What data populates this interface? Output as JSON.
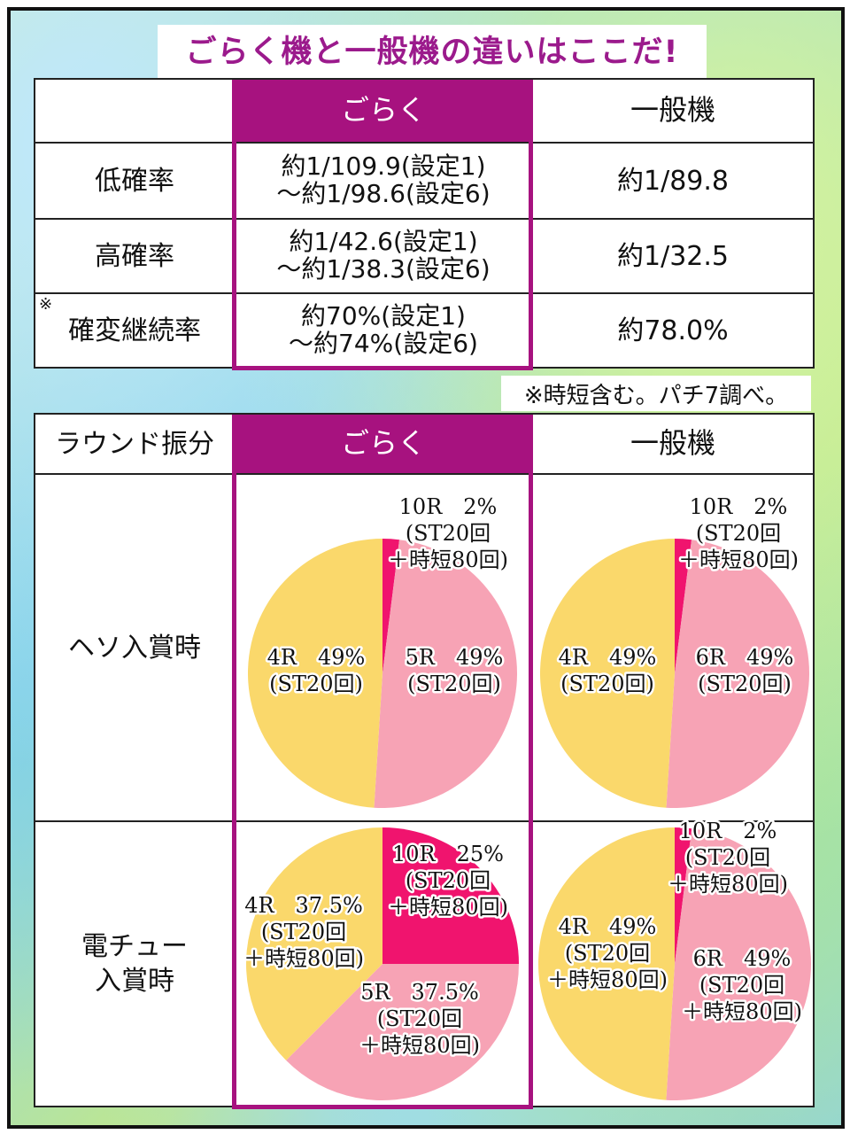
{
  "title": "ごらく機と一般機の違いはここだ!",
  "table1": {
    "header": {
      "goraku": "ごらく",
      "ippan": "一般機"
    },
    "rows": [
      {
        "label": "低確率",
        "goraku": [
          "約1/109.9(設定1)",
          "～約1/98.6(設定6)"
        ],
        "ippan": "約1/89.8"
      },
      {
        "label": "高確率",
        "goraku": [
          "約1/42.6(設定1)",
          "～約1/38.3(設定6)"
        ],
        "ippan": "約1/32.5"
      },
      {
        "label": "確変継続率",
        "mark": "※",
        "goraku": [
          "約70%(設定1)",
          "～約74%(設定6)"
        ],
        "ippan": "約78.0%"
      }
    ],
    "note": "※時短含む。パチ7調べ。"
  },
  "table2": {
    "header": {
      "label": "ラウンド振分",
      "goraku": "ごらく",
      "ippan": "一般機"
    },
    "rows": [
      {
        "label": [
          "ヘソ入賞時"
        ]
      },
      {
        "label": [
          "電チュー",
          "入賞時"
        ]
      }
    ]
  },
  "colors": {
    "purple": "#a7127f",
    "pie_magenta": "#f0146e",
    "pie_pink": "#f7a3b5",
    "pie_yellow": "#fad86b"
  },
  "chart_data": [
    {
      "type": "pie",
      "condition": "ヘソ入賞時",
      "machine": "ごらく",
      "slices": [
        {
          "label": [
            "10R　2%",
            "(ST20回",
            "＋時短80回)"
          ],
          "value": 2,
          "color": "#f0146e"
        },
        {
          "label": [
            "5R　49%",
            "(ST20回)"
          ],
          "value": 49,
          "color": "#f7a3b5"
        },
        {
          "label": [
            "4R　49%",
            "(ST20回)"
          ],
          "value": 49,
          "color": "#fad86b"
        }
      ]
    },
    {
      "type": "pie",
      "condition": "ヘソ入賞時",
      "machine": "一般機",
      "slices": [
        {
          "label": [
            "10R　2%",
            "(ST20回",
            "＋時短80回)"
          ],
          "value": 2,
          "color": "#f0146e"
        },
        {
          "label": [
            "6R　49%",
            "(ST20回)"
          ],
          "value": 49,
          "color": "#f7a3b5"
        },
        {
          "label": [
            "4R　49%",
            "(ST20回)"
          ],
          "value": 49,
          "color": "#fad86b"
        }
      ]
    },
    {
      "type": "pie",
      "condition": "電チュー入賞時",
      "machine": "ごらく",
      "slices": [
        {
          "label": [
            "10R　25%",
            "(ST20回",
            "＋時短80回)"
          ],
          "value": 25,
          "color": "#f0146e"
        },
        {
          "label": [
            "5R　37.5%",
            "(ST20回",
            "＋時短80回)"
          ],
          "value": 37.5,
          "color": "#f7a3b5"
        },
        {
          "label": [
            "4R　37.5%",
            "(ST20回",
            "＋時短80回)"
          ],
          "value": 37.5,
          "color": "#fad86b"
        }
      ]
    },
    {
      "type": "pie",
      "condition": "電チュー入賞時",
      "machine": "一般機",
      "slices": [
        {
          "label": [
            "10R　2%",
            "(ST20回",
            "＋時短80回)"
          ],
          "value": 2,
          "color": "#f0146e"
        },
        {
          "label": [
            "6R　49%",
            "(ST20回",
            "＋時短80回)"
          ],
          "value": 49,
          "color": "#f7a3b5"
        },
        {
          "label": [
            "4R　49%",
            "(ST20回",
            "＋時短80回)"
          ],
          "value": 49,
          "color": "#fad86b"
        }
      ]
    }
  ]
}
